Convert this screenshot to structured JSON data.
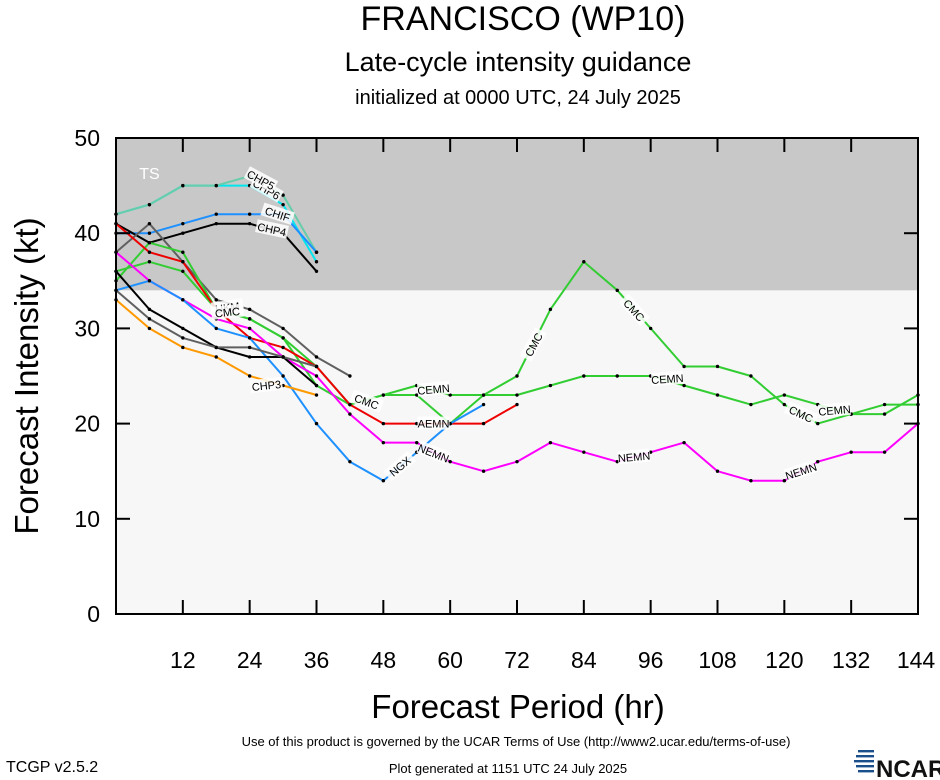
{
  "title": "FRANCISCO (WP10)",
  "subtitle": "Late-cycle intensity guidance",
  "init_line": "initialized at 0000 UTC, 24 July 2025",
  "footer": {
    "terms": "Use of this product is governed by the UCAR Terms of Use (http://www2.ucar.edu/terms-of-use)",
    "generated": "Plot generated at 1151 UTC   24 July 2025",
    "version": "TCGP v2.5.2",
    "logo": "NCAR"
  },
  "colors": {
    "ts_band": "#c8c8c8",
    "below_band": "#f7f7f7"
  },
  "chart_data": {
    "type": "line",
    "title": "FRANCISCO (WP10)",
    "xlabel": "Forecast Period (hr)",
    "ylabel": "Forecast Intensity (kt)",
    "xlim": [
      0,
      144
    ],
    "ylim": [
      0,
      50
    ],
    "xticks": [
      12,
      24,
      36,
      48,
      60,
      72,
      84,
      96,
      108,
      120,
      132,
      144
    ],
    "yticks": [
      0,
      10,
      20,
      30,
      40,
      50
    ],
    "grid": false,
    "bands": [
      {
        "label": "TS",
        "from": 34,
        "to": 50,
        "color": "#c8c8c8"
      }
    ],
    "series": [
      {
        "name": "CHP6",
        "color": "#00e5ee",
        "x": [
          0,
          6,
          12,
          18,
          24,
          30,
          36
        ],
        "y": [
          42,
          43,
          45,
          45,
          45,
          43,
          37
        ]
      },
      {
        "name": "CHP5",
        "color": "#66cdaa",
        "x": [
          0,
          6,
          12,
          18,
          24,
          30,
          36
        ],
        "y": [
          42,
          43,
          45,
          45,
          46,
          44,
          38
        ]
      },
      {
        "name": "CHIF",
        "color": "#1e90ff",
        "x": [
          0,
          6,
          12,
          18,
          24,
          30,
          36
        ],
        "y": [
          40,
          40,
          41,
          42,
          42,
          42,
          38
        ]
      },
      {
        "name": "CHP4",
        "color": "#000000",
        "x": [
          0,
          6,
          12,
          18,
          24,
          30,
          36
        ],
        "y": [
          41,
          39,
          40,
          41,
          41,
          40,
          36
        ]
      },
      {
        "name": "UKM",
        "color": "#606060",
        "x": [
          0,
          6,
          12,
          18,
          24,
          30,
          36,
          42
        ],
        "y": [
          38,
          41,
          37,
          33,
          32,
          30,
          27,
          25
        ]
      },
      {
        "name": "CMC",
        "color": "#32cd32",
        "x": [
          0,
          6,
          12,
          18,
          24,
          30,
          36,
          42,
          48,
          54,
          60,
          66,
          72,
          78,
          84,
          90,
          96,
          102,
          108,
          114,
          120,
          126,
          132,
          138,
          144
        ],
        "y": [
          35,
          39,
          38,
          32,
          31,
          29,
          26,
          22,
          23,
          23,
          20,
          23,
          25,
          32,
          37,
          34,
          30,
          26,
          26,
          25,
          22,
          20,
          21,
          21,
          23
        ]
      },
      {
        "name": "CEMN",
        "color": "#32cd32",
        "x": [
          0,
          6,
          12,
          18,
          24,
          30,
          36,
          42,
          48,
          54,
          60,
          66,
          72,
          78,
          84,
          90,
          96,
          102,
          108,
          114,
          120,
          126,
          132,
          138,
          144
        ],
        "y": [
          36,
          37,
          36,
          32,
          31,
          29,
          24,
          22,
          23,
          24,
          23,
          23,
          23,
          24,
          25,
          25,
          25,
          24,
          23,
          22,
          23,
          22,
          21,
          22,
          22
        ]
      },
      {
        "name": "AEMN",
        "color": "#ee0000",
        "x": [
          0,
          6,
          12,
          18,
          24,
          30,
          36,
          42,
          48,
          54,
          60,
          66,
          72
        ],
        "y": [
          41,
          38,
          37,
          32,
          29,
          28,
          26,
          22,
          20,
          20,
          20,
          20,
          22
        ]
      },
      {
        "name": "NEMN",
        "color": "#ff00ff",
        "x": [
          0,
          6,
          12,
          18,
          24,
          30,
          36,
          42,
          48,
          54,
          60,
          66,
          72,
          78,
          84,
          90,
          96,
          102,
          108,
          114,
          120,
          126,
          132,
          138,
          144
        ],
        "y": [
          38,
          35,
          33,
          31,
          30,
          27,
          25,
          21,
          18,
          18,
          16,
          15,
          16,
          18,
          17,
          16,
          17,
          18,
          15,
          14,
          14,
          16,
          17,
          17,
          20
        ]
      },
      {
        "name": "NGX",
        "color": "#1e90ff",
        "x": [
          0,
          6,
          12,
          18,
          24,
          30,
          36,
          42,
          48,
          54,
          60,
          66
        ],
        "y": [
          34,
          35,
          33,
          30,
          29,
          25,
          20,
          16,
          14,
          17,
          20,
          22
        ]
      },
      {
        "name": "CHP3",
        "color": "#ff9900",
        "x": [
          0,
          6,
          12,
          18,
          24,
          30,
          36
        ],
        "y": [
          33,
          30,
          28,
          27,
          25,
          24,
          23
        ]
      },
      {
        "name": "",
        "color": "#000000",
        "x": [
          0,
          6,
          12,
          18,
          24,
          30,
          36
        ],
        "y": [
          36,
          32,
          30,
          28,
          27,
          27,
          24
        ]
      },
      {
        "name": "",
        "color": "#606060",
        "x": [
          0,
          6,
          12,
          18,
          24,
          30,
          36
        ],
        "y": [
          34,
          31,
          29,
          28,
          28,
          27,
          26
        ]
      }
    ],
    "labels": [
      {
        "series": "CHP6",
        "text": "CHP6",
        "x": 27,
        "y": 44.6,
        "angle": 30
      },
      {
        "series": "CHP5",
        "text": "CHP5",
        "x": 26,
        "y": 45.6,
        "angle": 28
      },
      {
        "series": "CHIF",
        "text": "CHIF",
        "x": 29,
        "y": 42.0,
        "angle": 18
      },
      {
        "series": "CHP4",
        "text": "CHP4",
        "x": 28,
        "y": 40.4,
        "angle": 12
      },
      {
        "series": "UKM",
        "text": "UKM",
        "x": 20,
        "y": 32.2,
        "angle": -8
      },
      {
        "series": "CMC",
        "text": "CMC",
        "x": 20,
        "y": 31.7,
        "angle": -6
      },
      {
        "series": "CMC",
        "text": "CMC",
        "x": 45,
        "y": 22.3,
        "angle": 20
      },
      {
        "series": "CMC",
        "text": "CMC",
        "x": 75,
        "y": 28.3,
        "angle": -62
      },
      {
        "series": "CMC",
        "text": "CMC",
        "x": 93,
        "y": 31.9,
        "angle": 48
      },
      {
        "series": "CMC",
        "text": "CMC",
        "x": 123,
        "y": 21.0,
        "angle": 25
      },
      {
        "series": "CEMN",
        "text": "CEMN",
        "x": 57,
        "y": 23.6,
        "angle": -5
      },
      {
        "series": "CEMN",
        "text": "CEMN",
        "x": 99,
        "y": 24.7,
        "angle": -4
      },
      {
        "series": "CEMN",
        "text": "CEMN",
        "x": 129,
        "y": 21.4,
        "angle": -5
      },
      {
        "series": "AEMN",
        "text": "AEMN",
        "x": 57,
        "y": 20.0,
        "angle": 0
      },
      {
        "series": "NEMN",
        "text": "NEMN",
        "x": 57,
        "y": 16.9,
        "angle": 22
      },
      {
        "series": "NEMN",
        "text": "NEMN",
        "x": 93,
        "y": 16.5,
        "angle": -5
      },
      {
        "series": "NEMN",
        "text": "NEMN",
        "x": 123,
        "y": 15.0,
        "angle": -18
      },
      {
        "series": "NGX",
        "text": "NGX",
        "x": 51,
        "y": 15.5,
        "angle": -40
      },
      {
        "series": "CHP3",
        "text": "CHP3",
        "x": 27,
        "y": 24.0,
        "angle": -6
      }
    ]
  }
}
